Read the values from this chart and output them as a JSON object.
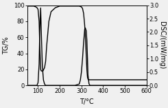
{
  "xlabel": "T/°C",
  "ylabel_left": "TG/%",
  "ylabel_right": "DSC/(mW/mg)",
  "xlim": [
    50,
    600
  ],
  "ylim_left": [
    0,
    100
  ],
  "ylim_right": [
    0.0,
    3.0
  ],
  "xticks": [
    100,
    200,
    300,
    400,
    500,
    600
  ],
  "yticks_left": [
    0,
    20,
    40,
    60,
    80,
    100
  ],
  "yticks_right": [
    0.0,
    0.5,
    1.0,
    1.5,
    2.0,
    2.5,
    3.0
  ],
  "tg_x": [
    50,
    80,
    90,
    95,
    100,
    105,
    108,
    112,
    115,
    118,
    120,
    123,
    126,
    130,
    135,
    140,
    150,
    160,
    180,
    200,
    220,
    250,
    270,
    290,
    300,
    305,
    310,
    315,
    320,
    325,
    328,
    330,
    332,
    335,
    340,
    350,
    360,
    400,
    500,
    600
  ],
  "tg_y": [
    99,
    99,
    98,
    97,
    95,
    80,
    50,
    20,
    18,
    18,
    18,
    18,
    20,
    22,
    30,
    50,
    80,
    92,
    97,
    99,
    99,
    99,
    99,
    99,
    98,
    96,
    90,
    75,
    50,
    20,
    10,
    8,
    7,
    7,
    7,
    7,
    7,
    7,
    7,
    7
  ],
  "dsc_x": [
    50,
    80,
    95,
    100,
    105,
    108,
    112,
    115,
    120,
    125,
    130,
    135,
    140,
    160,
    200,
    270,
    290,
    295,
    300,
    305,
    310,
    315,
    318,
    320,
    322,
    325,
    328,
    330,
    335,
    340,
    350,
    400,
    500,
    600
  ],
  "dsc_y": [
    0.0,
    0.0,
    0.0,
    0.1,
    0.8,
    2.0,
    2.9,
    2.0,
    0.7,
    0.2,
    0.05,
    0.0,
    0.0,
    0.0,
    0.0,
    0.0,
    0.05,
    0.2,
    0.5,
    1.0,
    1.6,
    2.1,
    2.15,
    2.1,
    2.05,
    1.7,
    1.0,
    0.4,
    0.05,
    0.0,
    0.0,
    0.0,
    0.0,
    0.0
  ],
  "line_color": "#000000",
  "background_color": "#f0f0f0",
  "fontsize": 7
}
